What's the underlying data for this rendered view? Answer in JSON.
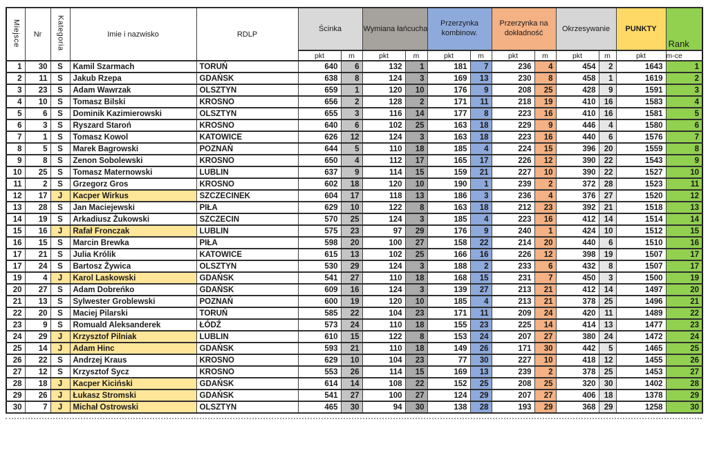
{
  "table": {
    "headers": {
      "miejsce": "Miejsce",
      "nr": "Nr",
      "kategoria": "Kategoria",
      "name": "Imie  i nazwisko",
      "rdlp": "RDLP",
      "events": [
        {
          "label": "Ścinka"
        },
        {
          "label": "Wymiana łańcucha"
        },
        {
          "label": "Przerzynka kombinow."
        },
        {
          "label": "Przerzynka na dokładność"
        },
        {
          "label": "Okrzesywanie"
        }
      ],
      "punkty": "PUNKTY",
      "rank": "Rank",
      "sub_pkt": "pkt",
      "sub_m": "m",
      "sub_rank": "m-ce"
    },
    "rows": [
      {
        "m": 1,
        "nr": 30,
        "kat": "S",
        "name": "Kamil Szarmach",
        "rdlp": "TORUŃ",
        "scores": [
          [
            640,
            6
          ],
          [
            132,
            1
          ],
          [
            181,
            7
          ],
          [
            236,
            4
          ],
          [
            454,
            2
          ]
        ],
        "punkty": 1643,
        "rank": 1
      },
      {
        "m": 2,
        "nr": 11,
        "kat": "S",
        "name": "Jakub Rzepa",
        "rdlp": "GDAŃSK",
        "scores": [
          [
            638,
            8
          ],
          [
            124,
            3
          ],
          [
            169,
            13
          ],
          [
            230,
            8
          ],
          [
            458,
            1
          ]
        ],
        "punkty": 1619,
        "rank": 2
      },
      {
        "m": 3,
        "nr": 23,
        "kat": "S",
        "name": "Adam Wawrzak",
        "rdlp": "OLSZTYN",
        "scores": [
          [
            659,
            1
          ],
          [
            120,
            10
          ],
          [
            176,
            9
          ],
          [
            208,
            25
          ],
          [
            428,
            9
          ]
        ],
        "punkty": 1591,
        "rank": 3
      },
      {
        "m": 4,
        "nr": 10,
        "kat": "S",
        "name": "Tomasz Bilski",
        "rdlp": "KROSNO",
        "scores": [
          [
            656,
            2
          ],
          [
            128,
            2
          ],
          [
            171,
            11
          ],
          [
            218,
            19
          ],
          [
            410,
            16
          ]
        ],
        "punkty": 1583,
        "rank": 4
      },
      {
        "m": 5,
        "nr": 6,
        "kat": "S",
        "name": "Dominik Kazimierowski",
        "rdlp": "OLSZTYN",
        "scores": [
          [
            655,
            3
          ],
          [
            116,
            14
          ],
          [
            177,
            8
          ],
          [
            223,
            16
          ],
          [
            410,
            16
          ]
        ],
        "punkty": 1581,
        "rank": 5
      },
      {
        "m": 6,
        "nr": 3,
        "kat": "S",
        "name": "Ryszard Staroń",
        "rdlp": "KROSNO",
        "scores": [
          [
            640,
            6
          ],
          [
            102,
            25
          ],
          [
            163,
            18
          ],
          [
            229,
            9
          ],
          [
            446,
            4
          ]
        ],
        "punkty": 1580,
        "rank": 6
      },
      {
        "m": 7,
        "nr": 1,
        "kat": "S",
        "name": "Tomasz Kowol",
        "rdlp": "KATOWICE",
        "scores": [
          [
            626,
            12
          ],
          [
            124,
            3
          ],
          [
            163,
            18
          ],
          [
            223,
            16
          ],
          [
            440,
            6
          ]
        ],
        "punkty": 1576,
        "rank": 7
      },
      {
        "m": 8,
        "nr": 5,
        "kat": "S",
        "name": "Marek Bagrowski",
        "rdlp": "POZNAŃ",
        "scores": [
          [
            644,
            5
          ],
          [
            110,
            18
          ],
          [
            185,
            4
          ],
          [
            224,
            15
          ],
          [
            396,
            20
          ]
        ],
        "punkty": 1559,
        "rank": 8
      },
      {
        "m": 9,
        "nr": 8,
        "kat": "S",
        "name": "Zenon Sobolewski",
        "rdlp": "KROSNO",
        "scores": [
          [
            650,
            4
          ],
          [
            112,
            17
          ],
          [
            165,
            17
          ],
          [
            226,
            12
          ],
          [
            390,
            22
          ]
        ],
        "punkty": 1543,
        "rank": 9
      },
      {
        "m": 10,
        "nr": 25,
        "kat": "S",
        "name": "Tomasz Maternowski",
        "rdlp": "LUBLIN",
        "scores": [
          [
            637,
            9
          ],
          [
            114,
            15
          ],
          [
            159,
            21
          ],
          [
            227,
            10
          ],
          [
            390,
            22
          ]
        ],
        "punkty": 1527,
        "rank": 10
      },
      {
        "m": 11,
        "nr": 2,
        "kat": "S",
        "name": "Grzegorz Gros",
        "rdlp": "KROSNO",
        "scores": [
          [
            602,
            18
          ],
          [
            120,
            10
          ],
          [
            190,
            1
          ],
          [
            239,
            2
          ],
          [
            372,
            28
          ]
        ],
        "punkty": 1523,
        "rank": 11
      },
      {
        "m": 12,
        "nr": 17,
        "kat": "J",
        "name": "Kacper Wirkus",
        "rdlp": "SZCZECINEK",
        "scores": [
          [
            604,
            17
          ],
          [
            118,
            13
          ],
          [
            186,
            3
          ],
          [
            236,
            4
          ],
          [
            376,
            27
          ]
        ],
        "punkty": 1520,
        "rank": 12
      },
      {
        "m": 13,
        "nr": 28,
        "kat": "S",
        "name": "Jan Maciejewski",
        "rdlp": "PIŁA",
        "scores": [
          [
            629,
            10
          ],
          [
            122,
            8
          ],
          [
            163,
            18
          ],
          [
            212,
            23
          ],
          [
            392,
            21
          ]
        ],
        "punkty": 1518,
        "rank": 13
      },
      {
        "m": 14,
        "nr": 19,
        "kat": "S",
        "name": "Arkadiusz Żukowski",
        "rdlp": "SZCZECIN",
        "scores": [
          [
            570,
            25
          ],
          [
            124,
            3
          ],
          [
            185,
            4
          ],
          [
            223,
            16
          ],
          [
            412,
            14
          ]
        ],
        "punkty": 1514,
        "rank": 14
      },
      {
        "m": 15,
        "nr": 16,
        "kat": "J",
        "name": "Rafał Fronczak",
        "rdlp": "LUBLIN",
        "scores": [
          [
            575,
            23
          ],
          [
            97,
            29
          ],
          [
            176,
            9
          ],
          [
            240,
            1
          ],
          [
            424,
            10
          ]
        ],
        "punkty": 1512,
        "rank": 15
      },
      {
        "m": 16,
        "nr": 15,
        "kat": "S",
        "name": "Marcin Brewka",
        "rdlp": "PIŁA",
        "scores": [
          [
            598,
            20
          ],
          [
            100,
            27
          ],
          [
            158,
            22
          ],
          [
            214,
            20
          ],
          [
            440,
            6
          ]
        ],
        "punkty": 1510,
        "rank": 16
      },
      {
        "m": 17,
        "nr": 21,
        "kat": "S",
        "name": "Julia Królik",
        "rdlp": "KATOWICE",
        "scores": [
          [
            615,
            13
          ],
          [
            102,
            25
          ],
          [
            166,
            16
          ],
          [
            226,
            12
          ],
          [
            398,
            19
          ]
        ],
        "punkty": 1507,
        "rank": 17
      },
      {
        "m": 17,
        "nr": 24,
        "kat": "S",
        "name": "Bartosz Żywica",
        "rdlp": "OLSZTYN",
        "scores": [
          [
            530,
            29
          ],
          [
            124,
            3
          ],
          [
            188,
            2
          ],
          [
            233,
            6
          ],
          [
            432,
            8
          ]
        ],
        "punkty": 1507,
        "rank": 17
      },
      {
        "m": 19,
        "nr": 4,
        "kat": "J",
        "name": "Karol Laskowski",
        "rdlp": "GDAŃSK",
        "scores": [
          [
            541,
            27
          ],
          [
            110,
            18
          ],
          [
            168,
            15
          ],
          [
            231,
            7
          ],
          [
            450,
            3
          ]
        ],
        "punkty": 1500,
        "rank": 19
      },
      {
        "m": 20,
        "nr": 27,
        "kat": "S",
        "name": "Adam Dobreńko",
        "rdlp": "GDAŃSK",
        "scores": [
          [
            609,
            16
          ],
          [
            124,
            3
          ],
          [
            139,
            27
          ],
          [
            213,
            21
          ],
          [
            412,
            14
          ]
        ],
        "punkty": 1497,
        "rank": 20
      },
      {
        "m": 21,
        "nr": 13,
        "kat": "S",
        "name": "Sylwester Groblewski",
        "rdlp": "POZNAŃ",
        "scores": [
          [
            600,
            19
          ],
          [
            120,
            10
          ],
          [
            185,
            4
          ],
          [
            213,
            21
          ],
          [
            378,
            25
          ]
        ],
        "punkty": 1496,
        "rank": 21
      },
      {
        "m": 22,
        "nr": 20,
        "kat": "S",
        "name": "Maciej Pilarski",
        "rdlp": "TORUŃ",
        "scores": [
          [
            585,
            22
          ],
          [
            104,
            23
          ],
          [
            171,
            11
          ],
          [
            209,
            24
          ],
          [
            420,
            11
          ]
        ],
        "punkty": 1489,
        "rank": 22
      },
      {
        "m": 23,
        "nr": 9,
        "kat": "S",
        "name": "Romuald Aleksanderek",
        "rdlp": "ŁÓDŹ",
        "scores": [
          [
            573,
            24
          ],
          [
            110,
            18
          ],
          [
            155,
            23
          ],
          [
            225,
            14
          ],
          [
            414,
            13
          ]
        ],
        "punkty": 1477,
        "rank": 23
      },
      {
        "m": 24,
        "nr": 29,
        "kat": "J",
        "name": "Krzysztof Pilniak",
        "rdlp": "LUBLIN",
        "scores": [
          [
            610,
            15
          ],
          [
            122,
            8
          ],
          [
            153,
            24
          ],
          [
            207,
            27
          ],
          [
            380,
            24
          ]
        ],
        "punkty": 1472,
        "rank": 24
      },
      {
        "m": 25,
        "nr": 14,
        "kat": "J",
        "name": "Adam Hinc",
        "rdlp": "GDAŃSK",
        "scores": [
          [
            593,
            21
          ],
          [
            110,
            18
          ],
          [
            149,
            26
          ],
          [
            171,
            30
          ],
          [
            442,
            5
          ]
        ],
        "punkty": 1465,
        "rank": 25
      },
      {
        "m": 26,
        "nr": 22,
        "kat": "S",
        "name": "Andrzej Kraus",
        "rdlp": "KROSNO",
        "scores": [
          [
            629,
            10
          ],
          [
            104,
            23
          ],
          [
            77,
            30
          ],
          [
            227,
            10
          ],
          [
            418,
            12
          ]
        ],
        "punkty": 1455,
        "rank": 26
      },
      {
        "m": 27,
        "nr": 12,
        "kat": "S",
        "name": "Krzysztof Sycz",
        "rdlp": "KROSNO",
        "scores": [
          [
            553,
            26
          ],
          [
            114,
            15
          ],
          [
            169,
            13
          ],
          [
            239,
            2
          ],
          [
            378,
            25
          ]
        ],
        "punkty": 1453,
        "rank": 27
      },
      {
        "m": 28,
        "nr": 18,
        "kat": "J",
        "name": "Kacper Kiciński",
        "rdlp": "GDAŃSK",
        "scores": [
          [
            614,
            14
          ],
          [
            108,
            22
          ],
          [
            152,
            25
          ],
          [
            208,
            25
          ],
          [
            320,
            30
          ]
        ],
        "punkty": 1402,
        "rank": 28
      },
      {
        "m": 29,
        "nr": 26,
        "kat": "J",
        "name": "Łukasz Stromski",
        "rdlp": "GDAŃSK",
        "scores": [
          [
            541,
            27
          ],
          [
            100,
            27
          ],
          [
            124,
            29
          ],
          [
            207,
            27
          ],
          [
            406,
            18
          ]
        ],
        "punkty": 1378,
        "rank": 29
      },
      {
        "m": 30,
        "nr": 7,
        "kat": "J",
        "name": "Michał Ostrowski",
        "rdlp": "OLSZTYN",
        "scores": [
          [
            465,
            30
          ],
          [
            94,
            30
          ],
          [
            138,
            28
          ],
          [
            193,
            29
          ],
          [
            368,
            29
          ]
        ],
        "punkty": 1258,
        "rank": 30
      }
    ]
  },
  "colors": {
    "event_header_scinka": "#D9D9D9",
    "event_header_wymiana": "#A6A29D",
    "event_header_komb": "#8EAADC",
    "event_header_dokl": "#F4B183",
    "event_header_okrz": "#D6D6D6",
    "m_col_scinka": "#C4C4C4",
    "m_col_wymiana": "#ABABAB",
    "m_col_komb": "#8EAADC",
    "m_col_dokl": "#F4B183",
    "m_col_okrz": "#E7E6E6",
    "punkty_yellow": "#FFD966",
    "rank_green": "#92D050",
    "junior_highlight": "#FFE699"
  }
}
